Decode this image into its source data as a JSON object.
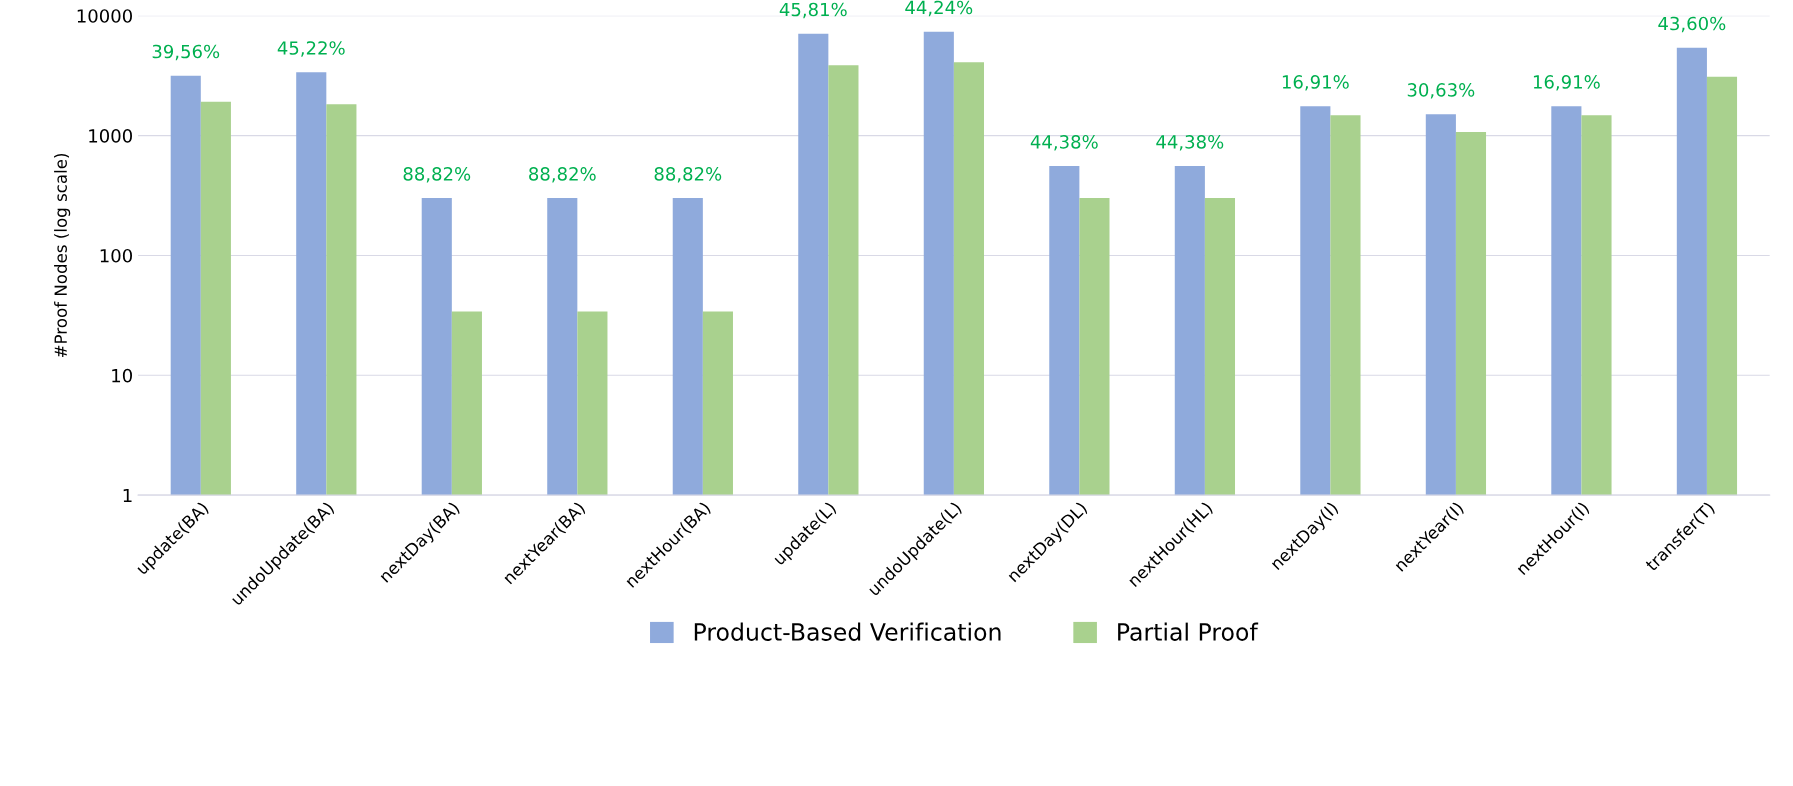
{
  "chart_data": {
    "type": "bar",
    "ylabel": "#Proof Nodes (log scale)",
    "log": "y",
    "categories": [
      "update(BA)",
      "undoUpdate(BA)",
      "nextDay(BA)",
      "nextYear(BA)",
      "nextHour(BA)",
      "update(L)",
      "undoUpdate(L)",
      "nextDay(DL)",
      "nextHour(HL)",
      "nextDay(I)",
      "nextYear(I)",
      "nextHour(I)",
      "transfer(T)"
    ],
    "series": [
      {
        "name": "Product-Based Verification",
        "color": "#8faadc",
        "values": [
          3160,
          3380,
          301,
          301,
          301,
          7080,
          7360,
          557,
          557,
          1760,
          1510,
          1760,
          5410
        ]
      },
      {
        "name": "Partial Proof",
        "color": "#a9d18e",
        "values": [
          1920,
          1830,
          34,
          34,
          34,
          3870,
          4100,
          301,
          301,
          1480,
          1070,
          1480,
          3100
        ]
      }
    ],
    "ylim": [
      1,
      10000
    ],
    "yticks": [
      1,
      10,
      100,
      1000,
      10000
    ],
    "grid": "y",
    "legend": "bottom",
    "annotations": [
      {
        "text": "39,56%",
        "x": "update(BA)",
        "y": 3160
      },
      {
        "text": "45,22%",
        "x": "undoUpdate(BA)",
        "y": 3380
      },
      {
        "text": "88,82%",
        "x": "nextDay(BA)",
        "y": 301
      },
      {
        "text": "88,82%",
        "x": "nextYear(BA)",
        "y": 301
      },
      {
        "text": "88,82%",
        "x": "nextHour(BA)",
        "y": 301
      },
      {
        "text": "45,81%",
        "x": "update(L)",
        "y": 7080
      },
      {
        "text": "44,24%",
        "x": "undoUpdate(L)",
        "y": 7360
      },
      {
        "text": "44,38%",
        "x": "nextDay(DL)",
        "y": 557
      },
      {
        "text": "44,38%",
        "x": "nextHour(HL)",
        "y": 557
      },
      {
        "text": "16,91%",
        "x": "nextDay(I)",
        "y": 1760
      },
      {
        "text": "30,63%",
        "x": "nextYear(I)",
        "y": 1510
      },
      {
        "text": "16,91%",
        "x": "nextHour(I)",
        "y": 1760
      },
      {
        "text": "43,60%",
        "x": "transfer(T)",
        "y": 5410
      }
    ]
  }
}
